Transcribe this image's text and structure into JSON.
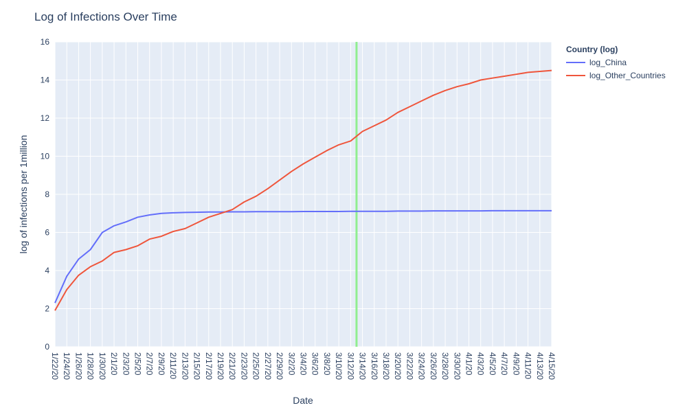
{
  "chart_data": {
    "type": "line",
    "title": "Log of Infections Over Time",
    "xlabel": "Date",
    "ylabel": "log of infections per 1million",
    "ylim": [
      0,
      16
    ],
    "yticks": [
      0,
      2,
      4,
      6,
      8,
      10,
      12,
      14,
      16
    ],
    "grid": true,
    "x_start": "1/22/20",
    "x_end": "4/15/20",
    "x_tick_labels": [
      "1/22/20",
      "1/24/20",
      "1/26/20",
      "1/28/20",
      "1/30/20",
      "2/1/20",
      "2/3/20",
      "2/5/20",
      "2/7/20",
      "2/9/20",
      "2/11/20",
      "2/13/20",
      "2/15/20",
      "2/17/20",
      "2/19/20",
      "2/21/20",
      "2/23/20",
      "2/25/20",
      "2/27/20",
      "2/29/20",
      "3/2/20",
      "3/4/20",
      "3/6/20",
      "3/8/20",
      "3/10/20",
      "3/12/20",
      "3/14/20",
      "3/16/20",
      "3/18/20",
      "3/20/20",
      "3/22/20",
      "3/24/20",
      "3/26/20",
      "3/28/20",
      "3/30/20",
      "4/1/20",
      "4/3/20",
      "4/5/20",
      "4/7/20",
      "4/9/20",
      "4/11/20",
      "4/13/20",
      "4/15/20"
    ],
    "vertical_line": {
      "x": "3/13/20",
      "color": "#90ee90"
    },
    "legend": {
      "title": "Country (log)",
      "position": "top-right"
    },
    "x": [
      "1/22/20",
      "1/24/20",
      "1/26/20",
      "1/28/20",
      "1/30/20",
      "2/1/20",
      "2/3/20",
      "2/5/20",
      "2/7/20",
      "2/9/20",
      "2/11/20",
      "2/13/20",
      "2/15/20",
      "2/17/20",
      "2/19/20",
      "2/21/20",
      "2/23/20",
      "2/25/20",
      "2/27/20",
      "2/29/20",
      "3/2/20",
      "3/4/20",
      "3/6/20",
      "3/8/20",
      "3/10/20",
      "3/12/20",
      "3/14/20",
      "3/16/20",
      "3/18/20",
      "3/20/20",
      "3/22/20",
      "3/24/20",
      "3/26/20",
      "3/28/20",
      "3/30/20",
      "4/1/20",
      "4/3/20",
      "4/5/20",
      "4/7/20",
      "4/9/20",
      "4/11/20",
      "4/13/20",
      "4/15/20"
    ],
    "series": [
      {
        "name": "log_China",
        "color": "#636efa",
        "values": [
          2.3,
          3.7,
          4.6,
          5.1,
          6.0,
          6.35,
          6.55,
          6.8,
          6.92,
          7.0,
          7.03,
          7.05,
          7.06,
          7.07,
          7.07,
          7.08,
          7.08,
          7.09,
          7.09,
          7.09,
          7.09,
          7.1,
          7.1,
          7.1,
          7.1,
          7.11,
          7.11,
          7.11,
          7.11,
          7.12,
          7.12,
          7.12,
          7.13,
          7.13,
          7.13,
          7.13,
          7.13,
          7.14,
          7.14,
          7.14,
          7.14,
          7.14,
          7.14
        ]
      },
      {
        "name": "log_Other_Countries",
        "color": "#ef553b",
        "values": [
          1.9,
          3.0,
          3.75,
          4.2,
          4.5,
          4.95,
          5.1,
          5.3,
          5.65,
          5.8,
          6.05,
          6.2,
          6.5,
          6.8,
          7.0,
          7.2,
          7.6,
          7.9,
          8.3,
          8.75,
          9.2,
          9.6,
          9.95,
          10.3,
          10.6,
          10.8,
          11.3,
          11.6,
          11.9,
          12.3,
          12.6,
          12.9,
          13.2,
          13.45,
          13.65,
          13.8,
          14.0,
          14.1,
          14.2,
          14.3,
          14.4,
          14.45,
          14.5
        ]
      }
    ]
  }
}
